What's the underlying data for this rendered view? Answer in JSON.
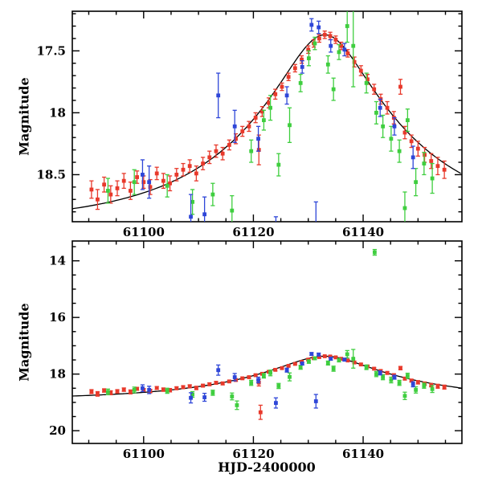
{
  "chart_data": {
    "type": "scatter",
    "title": "",
    "xlabel": "HJD-2400000",
    "ylabel": "Magnitude",
    "x_range": [
      61087,
      61158
    ],
    "x_major_ticks": [
      61100,
      61120,
      61140
    ],
    "x_minor_step": 5,
    "y_inverted": true,
    "panels": [
      {
        "name": "zoom",
        "y_range": [
          17.18,
          18.88
        ],
        "y_major_ticks": [
          17.5,
          18,
          18.5
        ],
        "y_major_labels": [
          "17.5",
          "18",
          "18.5"
        ],
        "y_minor_step": 0.1
      },
      {
        "name": "full",
        "y_range": [
          13.3,
          20.45
        ],
        "y_major_ticks": [
          14,
          16,
          18,
          20
        ],
        "y_major_labels": [
          "14",
          "16",
          "18",
          "20"
        ],
        "y_minor_step": 0.5
      }
    ],
    "model": {
      "type": "paczynski",
      "t0": 61133,
      "tE": 30,
      "u0": 0.25,
      "baseline_mag": 18.9,
      "color": "#000000"
    },
    "series": [
      {
        "name": "red",
        "color": "#e8392b",
        "points": [
          [
            61090.5,
            18.62,
            0.07
          ],
          [
            61091.6,
            18.7,
            0.08
          ],
          [
            61092.8,
            18.58,
            0.06
          ],
          [
            61094.0,
            18.66,
            0.07
          ],
          [
            61095.2,
            18.61,
            0.06
          ],
          [
            61096.4,
            18.55,
            0.06
          ],
          [
            61097.6,
            18.63,
            0.07
          ],
          [
            61098.8,
            18.52,
            0.05
          ],
          [
            61100.0,
            18.56,
            0.05
          ],
          [
            61101.2,
            18.6,
            0.06
          ],
          [
            61102.4,
            18.49,
            0.05
          ],
          [
            61103.6,
            18.55,
            0.06
          ],
          [
            61104.8,
            18.57,
            0.06
          ],
          [
            61106.0,
            18.5,
            0.05
          ],
          [
            61107.2,
            18.46,
            0.05
          ],
          [
            61108.4,
            18.43,
            0.05
          ],
          [
            61109.6,
            18.49,
            0.06
          ],
          [
            61110.8,
            18.41,
            0.05
          ],
          [
            61112.0,
            18.36,
            0.05
          ],
          [
            61113.2,
            18.31,
            0.05
          ],
          [
            61114.4,
            18.33,
            0.05
          ],
          [
            61115.6,
            18.26,
            0.04
          ],
          [
            61116.8,
            18.21,
            0.04
          ],
          [
            61118.0,
            18.15,
            0.04
          ],
          [
            61119.2,
            18.11,
            0.04
          ],
          [
            61120.4,
            18.04,
            0.04
          ],
          [
            61121.0,
            18.3,
            0.12
          ],
          [
            61121.3,
            19.35,
            0.25
          ],
          [
            61121.6,
            17.99,
            0.04
          ],
          [
            61122.8,
            17.92,
            0.04
          ],
          [
            61124.0,
            17.85,
            0.04
          ],
          [
            61125.2,
            17.79,
            0.03
          ],
          [
            61126.4,
            17.71,
            0.03
          ],
          [
            61127.6,
            17.64,
            0.03
          ],
          [
            61128.8,
            17.57,
            0.03
          ],
          [
            61130.0,
            17.49,
            0.03
          ],
          [
            61131.0,
            17.44,
            0.03
          ],
          [
            61132.0,
            17.4,
            0.03
          ],
          [
            61133.0,
            17.37,
            0.03
          ],
          [
            61134.0,
            17.38,
            0.03
          ],
          [
            61135.0,
            17.41,
            0.03
          ],
          [
            61136.0,
            17.46,
            0.03
          ],
          [
            61137.2,
            17.52,
            0.03
          ],
          [
            61138.4,
            17.59,
            0.04
          ],
          [
            61139.6,
            17.66,
            0.04
          ],
          [
            61140.8,
            17.73,
            0.04
          ],
          [
            61142.0,
            17.81,
            0.04
          ],
          [
            61143.2,
            17.89,
            0.04
          ],
          [
            61144.4,
            17.96,
            0.05
          ],
          [
            61145.6,
            18.04,
            0.05
          ],
          [
            61146.8,
            17.79,
            0.06
          ],
          [
            61147.6,
            18.16,
            0.05
          ],
          [
            61148.8,
            18.23,
            0.05
          ],
          [
            61150.0,
            18.29,
            0.06
          ],
          [
            61151.2,
            18.34,
            0.06
          ],
          [
            61152.4,
            18.39,
            0.06
          ],
          [
            61153.6,
            18.43,
            0.07
          ],
          [
            61154.8,
            18.46,
            0.07
          ]
        ]
      },
      {
        "name": "green",
        "color": "#3fce3f",
        "points": [
          [
            61093.5,
            18.63,
            0.1
          ],
          [
            61098.3,
            18.56,
            0.1
          ],
          [
            61104.3,
            18.59,
            0.09
          ],
          [
            61108.9,
            18.72,
            0.1
          ],
          [
            61112.6,
            18.66,
            0.09
          ],
          [
            61116.1,
            18.79,
            0.12
          ],
          [
            61117.0,
            19.1,
            0.15
          ],
          [
            61119.6,
            18.31,
            0.09
          ],
          [
            61121.9,
            18.06,
            0.08
          ],
          [
            61123.1,
            17.96,
            0.1
          ],
          [
            61124.6,
            18.42,
            0.09
          ],
          [
            61126.6,
            18.1,
            0.14
          ],
          [
            61128.6,
            17.76,
            0.07
          ],
          [
            61130.1,
            17.56,
            0.06
          ],
          [
            61131.2,
            17.44,
            0.05
          ],
          [
            61133.6,
            17.61,
            0.07
          ],
          [
            61134.6,
            17.81,
            0.09
          ],
          [
            61135.6,
            17.51,
            0.06
          ],
          [
            61137.1,
            17.3,
            0.13
          ],
          [
            61138.2,
            17.46,
            0.33
          ],
          [
            61140.6,
            17.76,
            0.08
          ],
          [
            61142.1,
            13.7,
            0.1
          ],
          [
            61142.4,
            18.0,
            0.09
          ],
          [
            61143.6,
            18.11,
            0.09
          ],
          [
            61145.1,
            18.21,
            0.1
          ],
          [
            61146.6,
            18.31,
            0.09
          ],
          [
            61147.6,
            18.77,
            0.13
          ],
          [
            61148.1,
            18.06,
            0.09
          ],
          [
            61149.6,
            18.56,
            0.11
          ],
          [
            61151.1,
            18.41,
            0.09
          ],
          [
            61152.6,
            18.53,
            0.12
          ]
        ]
      },
      {
        "name": "blue",
        "color": "#2e46d8",
        "points": [
          [
            61099.8,
            18.5,
            0.12
          ],
          [
            61101.0,
            18.56,
            0.13
          ],
          [
            61108.6,
            18.84,
            0.18
          ],
          [
            61111.1,
            18.82,
            0.14
          ],
          [
            61113.6,
            17.86,
            0.18
          ],
          [
            61116.6,
            18.11,
            0.13
          ],
          [
            61120.9,
            18.21,
            0.1
          ],
          [
            61124.1,
            19.02,
            0.18
          ],
          [
            61126.1,
            17.86,
            0.07
          ],
          [
            61128.9,
            17.63,
            0.05
          ],
          [
            61130.6,
            17.29,
            0.05
          ],
          [
            61131.4,
            18.96,
            0.24
          ],
          [
            61131.9,
            17.31,
            0.05
          ],
          [
            61134.1,
            17.46,
            0.05
          ],
          [
            61136.6,
            17.49,
            0.05
          ],
          [
            61143.1,
            17.96,
            0.07
          ],
          [
            61145.7,
            18.11,
            0.07
          ],
          [
            61149.1,
            18.36,
            0.09
          ]
        ]
      }
    ]
  }
}
